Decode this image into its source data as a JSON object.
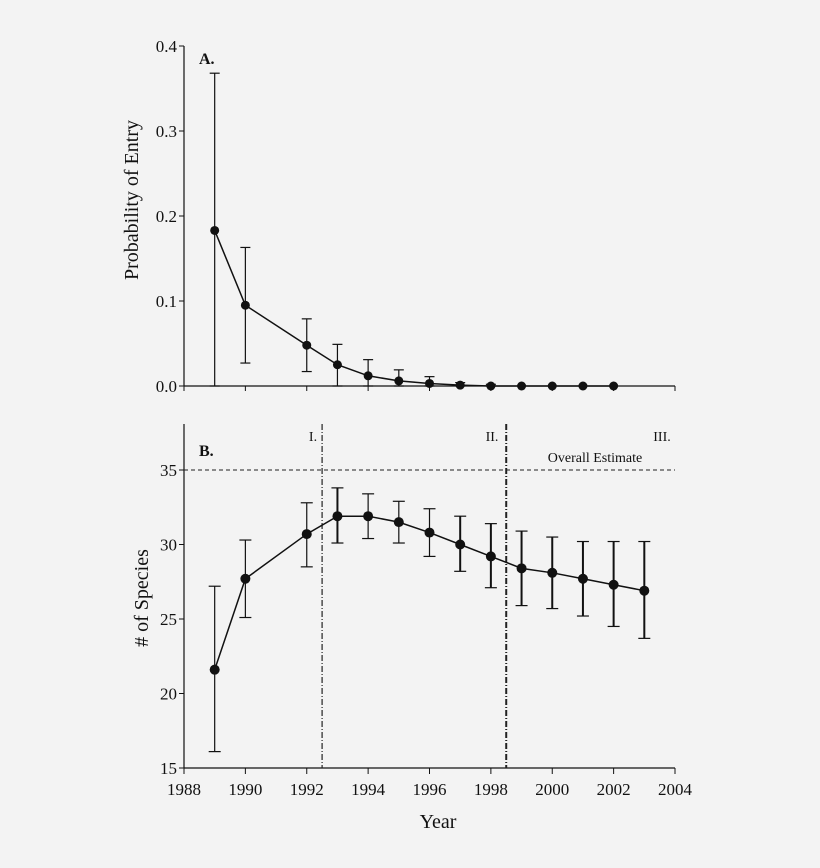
{
  "chart_data": [
    {
      "type": "line",
      "panel_label": "A.",
      "xlabel": "",
      "ylabel": "Probability of Entry",
      "xlim": [
        1988,
        2004
      ],
      "ylim": [
        0.0,
        0.4
      ],
      "yticks": [
        "0.0",
        "0.1",
        "0.2",
        "0.3",
        "0.4"
      ],
      "xticks_labeled": false,
      "grid": false,
      "series": [
        {
          "x": [
            1989,
            1990,
            1992,
            1993,
            1994,
            1995,
            1996,
            1997,
            1998,
            1999,
            2000,
            2001,
            2002
          ],
          "y": [
            0.183,
            0.095,
            0.048,
            0.025,
            0.012,
            0.006,
            0.003,
            0.001,
            0.0,
            0.0,
            0.0,
            0.0,
            0.0
          ],
          "err_low": [
            0.0,
            0.027,
            0.017,
            0.0,
            0.0,
            0.0,
            0.0,
            0.0,
            0.0,
            0.0,
            0.0,
            0.0,
            0.0
          ],
          "err_high": [
            0.368,
            0.163,
            0.079,
            0.049,
            0.031,
            0.019,
            0.011,
            0.004,
            0.002,
            0.0,
            0.0,
            0.0,
            0.0
          ]
        }
      ]
    },
    {
      "type": "line",
      "panel_label": "B.",
      "xlabel": "Year",
      "ylabel": "# of Species",
      "xlim": [
        1988,
        2004
      ],
      "ylim": [
        15,
        38
      ],
      "xticks": [
        "1988",
        "1990",
        "1992",
        "1994",
        "1996",
        "1998",
        "2000",
        "2002",
        "2004"
      ],
      "yticks": [
        "15",
        "20",
        "25",
        "30",
        "35"
      ],
      "grid": false,
      "reference_line": {
        "y": 35,
        "label": "Overall Estimate",
        "style": "dashed"
      },
      "period_dividers": [
        1992.5,
        1998.5
      ],
      "period_labels": [
        "I.",
        "II.",
        "III."
      ],
      "series": [
        {
          "x": [
            1989,
            1990,
            1992,
            1993,
            1994,
            1995,
            1996,
            1997,
            1998,
            1999,
            2000,
            2001,
            2002,
            2003
          ],
          "y": [
            21.6,
            27.7,
            30.7,
            31.9,
            31.9,
            31.5,
            30.8,
            30.0,
            29.2,
            28.4,
            28.1,
            27.7,
            27.3,
            26.9
          ],
          "err_low": [
            16.1,
            25.1,
            28.5,
            30.1,
            30.4,
            30.1,
            29.2,
            28.2,
            27.1,
            25.9,
            25.7,
            25.2,
            24.5,
            23.7
          ],
          "err_high": [
            27.2,
            30.3,
            32.8,
            33.8,
            33.4,
            32.9,
            32.4,
            31.9,
            31.4,
            30.9,
            30.5,
            30.2,
            30.2,
            30.2
          ]
        }
      ]
    }
  ]
}
